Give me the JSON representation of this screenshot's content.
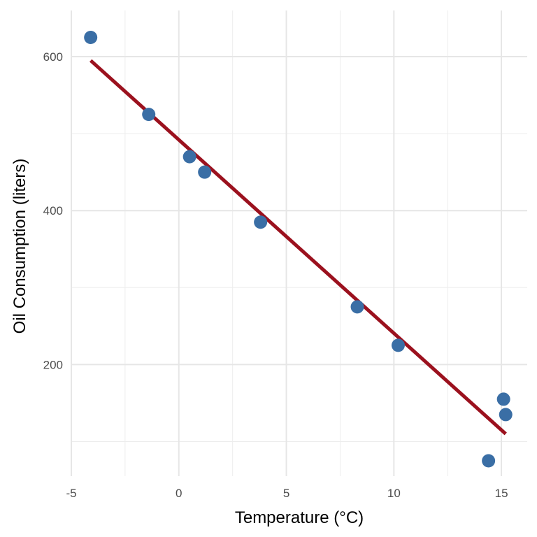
{
  "chart_data": {
    "type": "scatter",
    "title": "",
    "xlabel": "Temperature (°C)",
    "ylabel": "Oil Consumption (liters)",
    "xlim": [
      -5,
      16.2
    ],
    "ylim": [
      55,
      660
    ],
    "x_ticks": [
      -5,
      0,
      5,
      10,
      15
    ],
    "x_tick_labels": [
      "-5",
      "0",
      "5",
      "10",
      "15"
    ],
    "y_ticks": [
      200,
      400,
      600
    ],
    "y_tick_labels": [
      "200",
      "400",
      "600"
    ],
    "x_minor_gridlines": [
      -2.5,
      2.5,
      7.5,
      12.5
    ],
    "y_minor_gridlines": [
      100,
      300,
      500
    ],
    "grid": true,
    "points": [
      {
        "x": -4.1,
        "y": 625
      },
      {
        "x": -1.4,
        "y": 525
      },
      {
        "x": 0.5,
        "y": 470
      },
      {
        "x": 1.2,
        "y": 450
      },
      {
        "x": 3.8,
        "y": 385
      },
      {
        "x": 8.3,
        "y": 275
      },
      {
        "x": 10.2,
        "y": 225
      },
      {
        "x": 14.4,
        "y": 75
      },
      {
        "x": 15.1,
        "y": 155
      },
      {
        "x": 15.2,
        "y": 135
      }
    ],
    "trend_line": {
      "x": [
        -4.1,
        15.2
      ],
      "y": [
        595,
        110
      ]
    },
    "colors": {
      "points": "#3a6ea5",
      "trend_line": "#9b111e",
      "grid": "#e6e6e6"
    }
  }
}
